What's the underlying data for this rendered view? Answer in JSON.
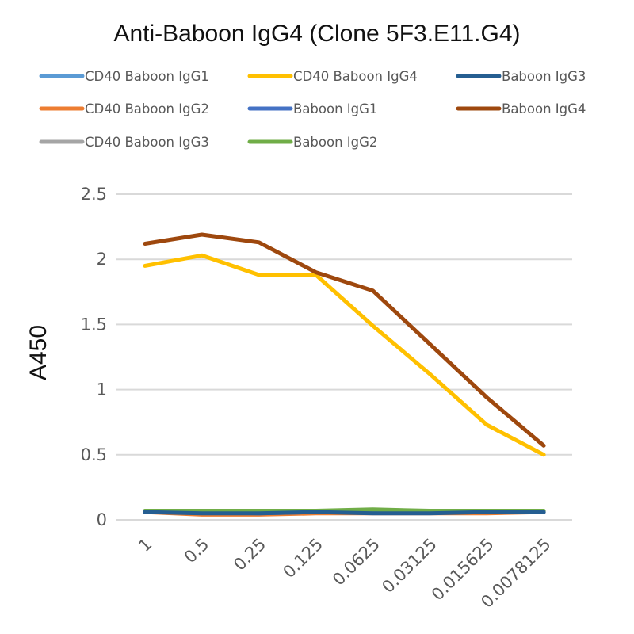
{
  "chart_data": {
    "type": "line",
    "title": "Anti-Baboon IgG4 (Clone 5F3.E11.G4)",
    "xlabel": "",
    "ylabel": "A450",
    "categories": [
      "1",
      "0.5",
      "0.25",
      "0.125",
      "0.0625",
      "0.03125",
      "0.015625",
      "0.0078125"
    ],
    "ylim": [
      0,
      2.5
    ],
    "yticks": [
      "0",
      "0.5",
      "1",
      "1.5",
      "2",
      "2.5"
    ],
    "grid": true,
    "legend_position": "top",
    "series": [
      {
        "name": "CD40 Baboon IgG1",
        "color": "#5B9BD5",
        "values": [
          0.06,
          0.06,
          0.06,
          0.06,
          0.06,
          0.06,
          0.06,
          0.06
        ]
      },
      {
        "name": "CD40 Baboon IgG2",
        "color": "#ED7D31",
        "values": [
          0.06,
          0.04,
          0.04,
          0.05,
          0.05,
          0.05,
          0.05,
          0.06
        ]
      },
      {
        "name": "CD40 Baboon IgG3",
        "color": "#A5A5A5",
        "values": [
          0.06,
          0.06,
          0.06,
          0.06,
          0.06,
          0.06,
          0.06,
          0.06
        ]
      },
      {
        "name": "CD40 Baboon IgG4",
        "color": "#FFC000",
        "values": [
          1.95,
          2.03,
          1.88,
          1.88,
          1.49,
          1.12,
          0.73,
          0.5
        ]
      },
      {
        "name": "Baboon IgG1",
        "color": "#4472C4",
        "values": [
          0.06,
          0.06,
          0.05,
          0.06,
          0.06,
          0.06,
          0.06,
          0.06
        ]
      },
      {
        "name": "Baboon IgG2",
        "color": "#70AD47",
        "values": [
          0.07,
          0.07,
          0.07,
          0.07,
          0.08,
          0.07,
          0.07,
          0.07
        ]
      },
      {
        "name": "Baboon IgG3",
        "color": "#255E91",
        "values": [
          0.06,
          0.05,
          0.05,
          0.06,
          0.05,
          0.05,
          0.06,
          0.06
        ]
      },
      {
        "name": "Baboon IgG4",
        "color": "#9E480E",
        "values": [
          2.12,
          2.19,
          2.13,
          1.9,
          1.76,
          1.35,
          0.94,
          0.57
        ]
      }
    ]
  }
}
